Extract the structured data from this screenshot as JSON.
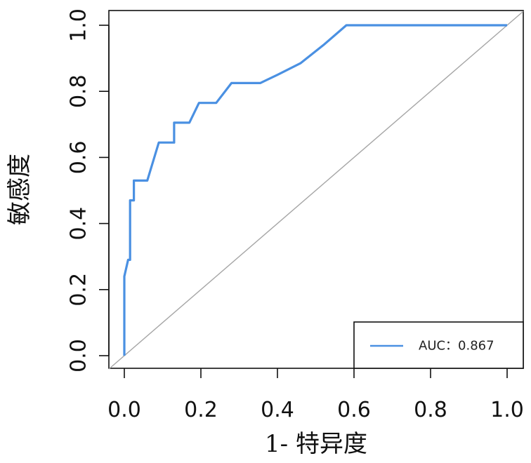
{
  "chart_data": {
    "type": "line",
    "xlabel": "1- 特异度",
    "ylabel": "敏感度",
    "xlim": [
      0,
      1
    ],
    "ylim": [
      0,
      1
    ],
    "x_ticks": [
      "0.0",
      "0.2",
      "0.4",
      "0.6",
      "0.8",
      "1.0"
    ],
    "y_ticks": [
      "0.0",
      "0.2",
      "0.4",
      "0.6",
      "0.8",
      "1.0"
    ],
    "grid": false,
    "legend_position": "bottom-right",
    "legend_label": "AUC：0.867",
    "series": [
      {
        "name": "AUC：0.867",
        "color": "#4a90e2",
        "points": [
          [
            0.0,
            0.0
          ],
          [
            0.0,
            0.24
          ],
          [
            0.01,
            0.29
          ],
          [
            0.015,
            0.29
          ],
          [
            0.015,
            0.47
          ],
          [
            0.025,
            0.47
          ],
          [
            0.025,
            0.53
          ],
          [
            0.06,
            0.53
          ],
          [
            0.09,
            0.645
          ],
          [
            0.13,
            0.645
          ],
          [
            0.13,
            0.705
          ],
          [
            0.17,
            0.705
          ],
          [
            0.195,
            0.765
          ],
          [
            0.24,
            0.765
          ],
          [
            0.28,
            0.825
          ],
          [
            0.355,
            0.825
          ],
          [
            0.4,
            0.85
          ],
          [
            0.46,
            0.885
          ],
          [
            0.52,
            0.94
          ],
          [
            0.58,
            1.0
          ],
          [
            1.0,
            1.0
          ]
        ]
      }
    ],
    "reference_line": {
      "points": [
        [
          0,
          0
        ],
        [
          1,
          1
        ]
      ],
      "color": "#a6a6a6"
    }
  }
}
